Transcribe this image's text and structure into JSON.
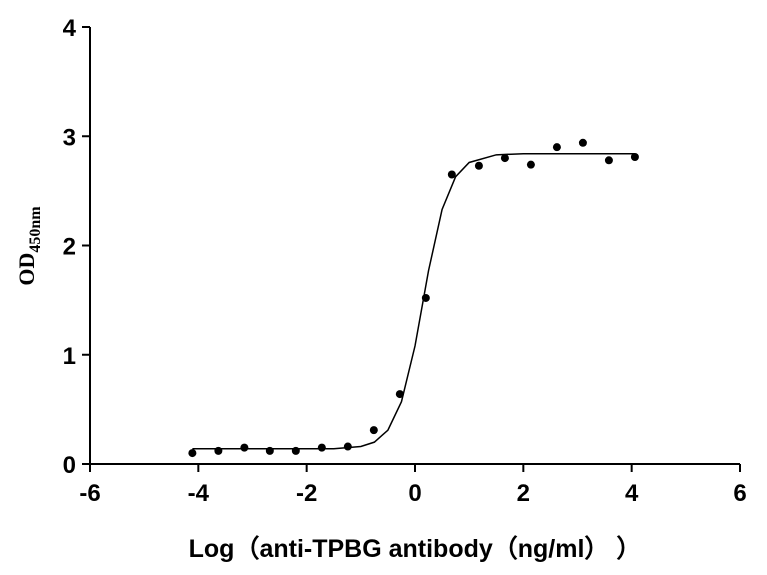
{
  "chart_data": {
    "type": "scatter",
    "x_label": "Log（anti-TPBG antibody（ng/ml） ）",
    "y_label": {
      "text": "OD",
      "subscript": "450nm"
    },
    "xlim": [
      -6,
      6
    ],
    "xticks": [
      -6,
      -4,
      -2,
      0,
      2,
      4,
      6
    ],
    "ylim": [
      0,
      4
    ],
    "yticks": [
      0,
      1,
      2,
      3,
      4
    ],
    "color": "#000000",
    "points": {
      "x": [
        -4.11,
        -3.63,
        -3.15,
        -2.68,
        -2.2,
        -1.72,
        -1.24,
        -0.76,
        -0.28,
        0.2,
        0.68,
        1.18,
        1.66,
        2.14,
        2.62,
        3.1,
        3.58,
        4.06
      ],
      "values": [
        0.1,
        0.12,
        0.15,
        0.12,
        0.12,
        0.15,
        0.16,
        0.31,
        0.64,
        1.52,
        2.65,
        2.73,
        2.8,
        2.74,
        2.9,
        2.94,
        2.78,
        2.81
      ]
    },
    "fit": {
      "x": [
        -4.11,
        -2,
        -1.5,
        -1,
        -0.75,
        -0.5,
        -0.25,
        0,
        0.25,
        0.5,
        0.75,
        1,
        1.5,
        2,
        4.06
      ],
      "values": [
        0.14,
        0.14,
        0.14,
        0.16,
        0.2,
        0.31,
        0.57,
        1.08,
        1.77,
        2.33,
        2.63,
        2.76,
        2.83,
        2.84,
        2.84
      ]
    }
  }
}
